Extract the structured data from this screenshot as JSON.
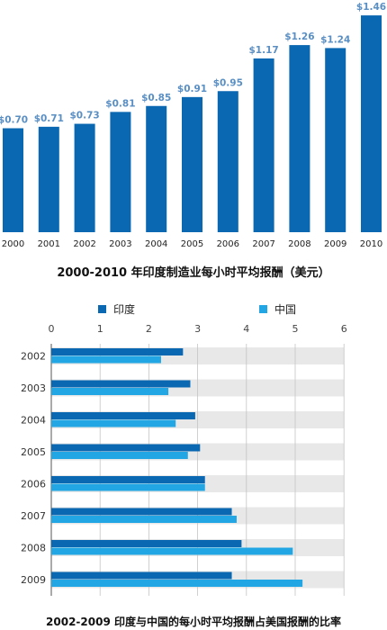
{
  "chart_data": [
    {
      "type": "bar",
      "title": "2000-2010 年印度制造业每小时平均报酬（美元）",
      "categories": [
        "2000",
        "2001",
        "2002",
        "2003",
        "2004",
        "2005",
        "2006",
        "2007",
        "2008",
        "2009",
        "2010"
      ],
      "values": [
        0.7,
        0.71,
        0.73,
        0.81,
        0.85,
        0.91,
        0.95,
        1.17,
        1.26,
        1.24,
        1.46
      ],
      "value_labels": [
        "$0.70",
        "$0.71",
        "$0.73",
        "$0.81",
        "$0.85",
        "$0.91",
        "$0.95",
        "$1.17",
        "$1.26",
        "$1.24",
        "$1.46"
      ],
      "color": "#0a67b1"
    },
    {
      "type": "bar",
      "orientation": "horizontal",
      "title": "2002-2009 印度与中国的每小时平均报酬占美国报酬的比率",
      "categories": [
        "2002",
        "2003",
        "2004",
        "2005",
        "2006",
        "2007",
        "2008",
        "2009"
      ],
      "xlim": [
        0,
        6
      ],
      "x_ticks": [
        "0",
        "1",
        "2",
        "3",
        "4",
        "5",
        "6"
      ],
      "grid": true,
      "legend_position": "top",
      "series": [
        {
          "name": "印度",
          "color": "#0a67b1",
          "values": [
            2.7,
            2.85,
            2.95,
            3.05,
            3.15,
            3.7,
            3.9,
            3.7
          ]
        },
        {
          "name": "中国",
          "color": "#22a7e4",
          "values": [
            2.25,
            2.4,
            2.55,
            2.8,
            3.15,
            3.8,
            4.95,
            5.15
          ]
        }
      ]
    }
  ]
}
